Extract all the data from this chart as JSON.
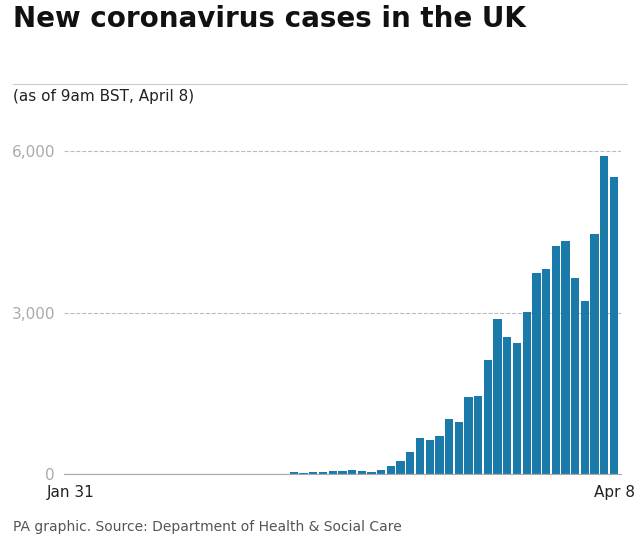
{
  "title": "New coronavirus cases in the UK",
  "subtitle": "(as of 9am BST, April 8)",
  "footer": "PA graphic. Source: Department of Health & Social Care",
  "xlabel_left": "Jan 31",
  "xlabel_right": "Apr 8",
  "ylim": [
    0,
    6300
  ],
  "yticks": [
    0,
    3000,
    6000
  ],
  "bar_color": "#1a7aaa",
  "background_color": "#ffffff",
  "grid_color": "#bbbbbb",
  "tick_color": "#aaaaaa",
  "values": [
    2,
    2,
    1,
    3,
    2,
    3,
    2,
    2,
    3,
    4,
    2,
    3,
    4,
    8,
    5,
    3,
    8,
    5,
    13,
    4,
    8,
    14,
    15,
    35,
    29,
    48,
    45,
    69,
    67,
    77,
    60,
    43,
    87,
    152,
    251,
    407,
    676,
    643,
    714,
    1035,
    967,
    1427,
    1452,
    2129,
    2885,
    2546,
    2433,
    3009,
    3735,
    3802,
    4244,
    4324,
    3634,
    3208,
    4450,
    5903,
    5525
  ],
  "title_fontsize": 20,
  "subtitle_fontsize": 11,
  "footer_fontsize": 10,
  "tick_fontsize": 11,
  "axis_label_fontsize": 11
}
